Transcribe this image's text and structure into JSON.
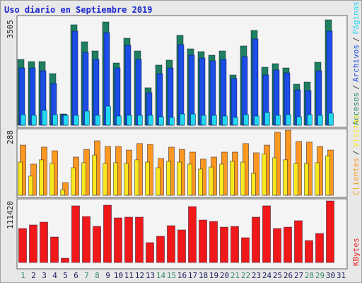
{
  "chart_data": {
    "type": "bar",
    "title": "Uso diario en Septiembre 2019",
    "separator": "/",
    "categories": [
      "1",
      "2",
      "3",
      "4",
      "5",
      "6",
      "7",
      "8",
      "9",
      "10",
      "11",
      "12",
      "13",
      "14",
      "15",
      "16",
      "17",
      "18",
      "19",
      "20",
      "21",
      "22",
      "23",
      "24",
      "25",
      "26",
      "27",
      "28",
      "29",
      "30",
      "31"
    ],
    "category_colors": [
      "#3c8a6a",
      "#202060",
      "#202060",
      "#202060",
      "#202060",
      "#202060",
      "#3c8a6a",
      "#3c8a6a",
      "#202060",
      "#202060",
      "#202060",
      "#202060",
      "#202060",
      "#3c8a6a",
      "#3c8a6a",
      "#202060",
      "#202060",
      "#202060",
      "#202060",
      "#202060",
      "#3c8a6a",
      "#3c8a6a",
      "#202060",
      "#202060",
      "#202060",
      "#202060",
      "#202060",
      "#3c8a6a",
      "#3c8a6a",
      "#202060",
      "#202060"
    ],
    "panels": [
      {
        "ylim": [
          0,
          3505
        ],
        "yticks": [
          3505
        ],
        "series": [
          {
            "name": "Accesos",
            "color": "#1e8060",
            "values": [
              2188,
              2117,
              2117,
              1717,
              376,
              3340,
              2776,
              2470,
              3434,
              2070,
              2893,
              2470,
              1247,
              2000,
              2164,
              2988,
              2540,
              2447,
              2329,
              2470,
              1670,
              2635,
              3152,
              1929,
              2047,
              1906,
              1364,
              1435,
              2094,
              3505,
              null
            ]
          },
          {
            "name": "Archivos",
            "color": "#1c4ee6",
            "values": [
              1905,
              1905,
              1811,
              1388,
              353,
              3129,
              2423,
              2188,
              3082,
              1905,
              2658,
              2188,
              1082,
              1717,
              1905,
              2682,
              2329,
              2235,
              2141,
              2188,
              1553,
              2282,
              2870,
              1670,
              1835,
              1741,
              1176,
              1153,
              1811,
              3129,
              null
            ]
          },
          {
            "name": "Páginas",
            "color": "#22d8f0",
            "values": [
              353,
              329,
              494,
              353,
              329,
              329,
              470,
              329,
              635,
              306,
              329,
              329,
              329,
              282,
              259,
              376,
              376,
              329,
              329,
              306,
              259,
              353,
              306,
              423,
              329,
              353,
              282,
              353,
              329,
              400,
              null
            ]
          }
        ]
      },
      {
        "ylim": [
          0,
          288
        ],
        "yticks": [
          288
        ],
        "series": [
          {
            "name": "Clientes",
            "color": "#ff9820",
            "values": [
              222,
              138,
              213,
              197,
              56,
              169,
              203,
              241,
              216,
              216,
              200,
              229,
              225,
              163,
              213,
              203,
              191,
              160,
              169,
              191,
              191,
              229,
              188,
              222,
              279,
              288,
              238,
              235,
              216,
              200,
              null
            ]
          },
          {
            "name": "Visitas",
            "color": "#f8e820",
            "values": [
              147,
              85,
              157,
              141,
              25,
              122,
              144,
              178,
              141,
              144,
              141,
              157,
              147,
              122,
              150,
              147,
              138,
              116,
              125,
              138,
              150,
              147,
              97,
              182,
              166,
              157,
              141,
              141,
              144,
              175,
              null
            ]
          }
        ]
      },
      {
        "ylim": [
          0,
          111420
        ],
        "yticks": [
          111420
        ],
        "series": [
          {
            "name": "KBytes",
            "color": "#f01818",
            "values": [
              61500,
              67900,
              73000,
              46100,
              7700,
              102500,
              83200,
              65300,
              103700,
              80700,
              82000,
              82000,
              35900,
              47400,
              66600,
              58900,
              101200,
              76800,
              74300,
              64000,
              65300,
              44800,
              82000,
              102500,
              61500,
              64000,
              75600,
              39700,
              52500,
              111420,
              null
            ]
          }
        ]
      }
    ]
  }
}
